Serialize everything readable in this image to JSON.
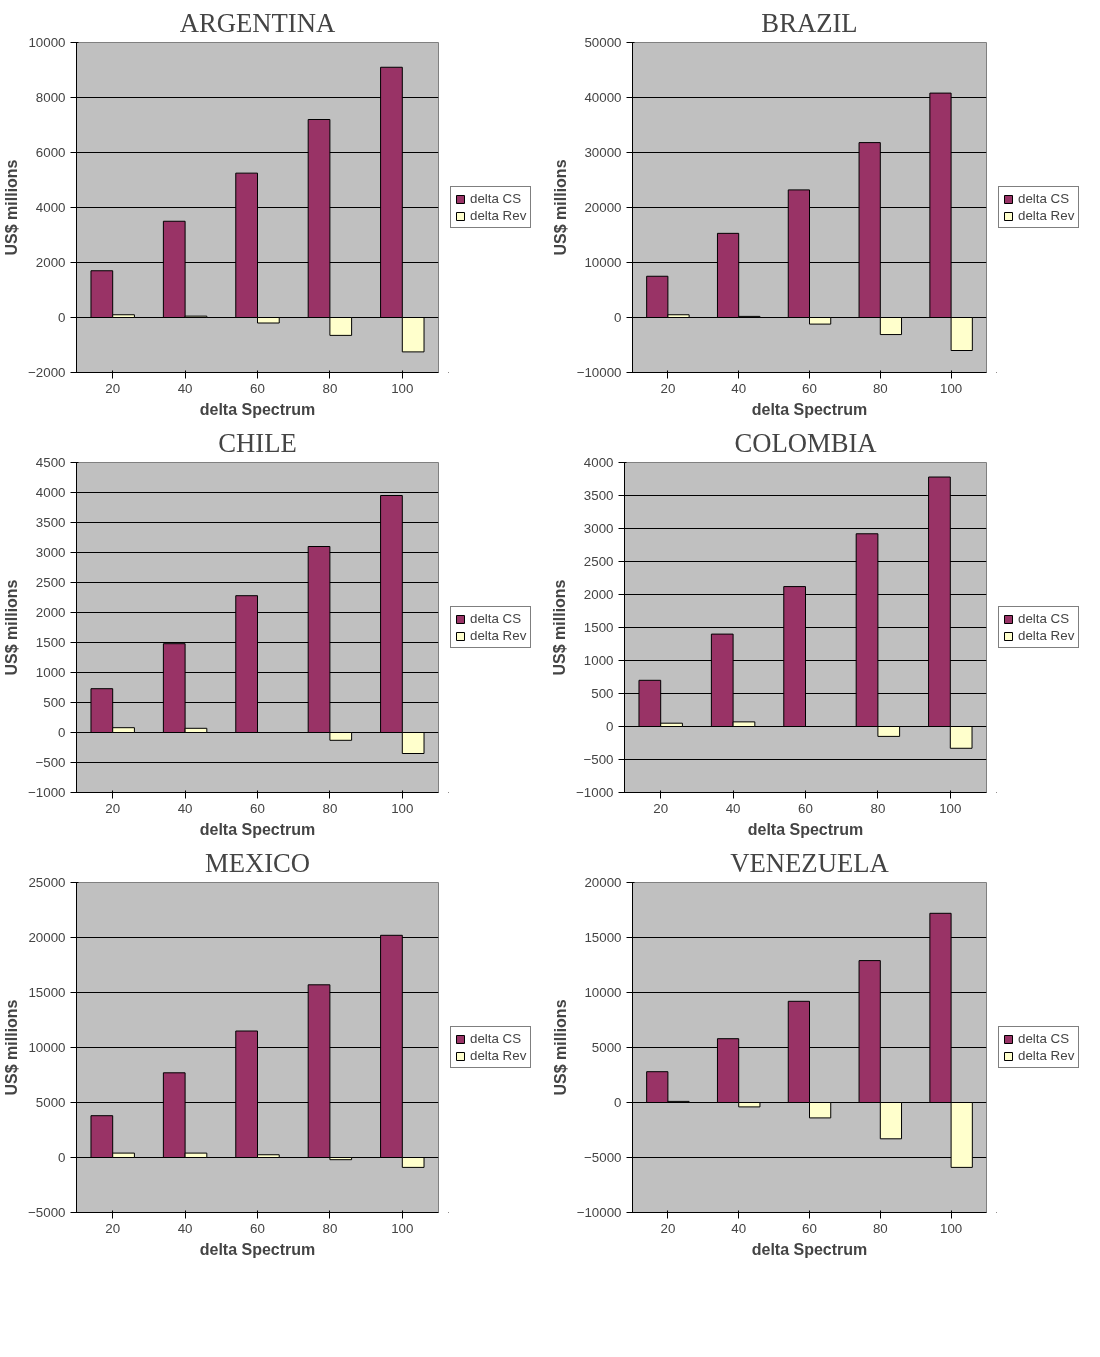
{
  "chart_data": [
    {
      "type": "bar",
      "title": "ARGENTINA",
      "xlabel": "delta Spectrum",
      "ylabel": "US$ millions",
      "categories": [
        "20",
        "40",
        "60",
        "80",
        "100"
      ],
      "series": [
        {
          "name": "delta CS",
          "color": "#993366",
          "values": [
            1700,
            3500,
            5250,
            7200,
            9100
          ]
        },
        {
          "name": "delta Rev",
          "color": "#ffffcc",
          "values": [
            100,
            50,
            -200,
            -650,
            -1250
          ]
        }
      ],
      "ylim": [
        -2000,
        10000
      ],
      "yticks": [
        -2000,
        0,
        2000,
        4000,
        6000,
        8000,
        10000
      ],
      "grid": "y",
      "legend": "right"
    },
    {
      "type": "bar",
      "title": "BRAZIL",
      "xlabel": "delta Spectrum",
      "ylabel": "US$ millions",
      "categories": [
        "20",
        "40",
        "60",
        "80",
        "100"
      ],
      "series": [
        {
          "name": "delta CS",
          "color": "#993366",
          "values": [
            7500,
            15300,
            23200,
            31800,
            40800
          ]
        },
        {
          "name": "delta Rev",
          "color": "#ffffcc",
          "values": [
            500,
            200,
            -1200,
            -3100,
            -6000
          ]
        }
      ],
      "ylim": [
        -10000,
        50000
      ],
      "yticks": [
        -10000,
        0,
        10000,
        20000,
        30000,
        40000,
        50000
      ],
      "grid": "y",
      "legend": "right"
    },
    {
      "type": "bar",
      "title": "CHILE",
      "xlabel": "delta Spectrum",
      "ylabel": "US$ millions",
      "categories": [
        "20",
        "40",
        "60",
        "80",
        "100"
      ],
      "series": [
        {
          "name": "delta CS",
          "color": "#993366",
          "values": [
            730,
            1480,
            2280,
            3100,
            3950
          ]
        },
        {
          "name": "delta Rev",
          "color": "#ffffcc",
          "values": [
            80,
            70,
            null,
            -130,
            -350
          ]
        }
      ],
      "ylim": [
        -1000,
        4500
      ],
      "yticks": [
        -1000,
        -500,
        0,
        500,
        1000,
        1500,
        2000,
        2500,
        3000,
        3500,
        4000,
        4500
      ],
      "grid": "y",
      "legend": "right"
    },
    {
      "type": "bar",
      "title": "COLOMBIA",
      "xlabel": "delta Spectrum",
      "ylabel": "US$ millions",
      "categories": [
        "20",
        "40",
        "60",
        "80",
        "100"
      ],
      "series": [
        {
          "name": "delta CS",
          "color": "#993366",
          "values": [
            700,
            1400,
            2120,
            2920,
            3780
          ]
        },
        {
          "name": "delta Rev",
          "color": "#ffffcc",
          "values": [
            50,
            70,
            null,
            -150,
            -330
          ]
        }
      ],
      "ylim": [
        -1000,
        4000
      ],
      "yticks": [
        -1000,
        -500,
        0,
        500,
        1000,
        1500,
        2000,
        2500,
        3000,
        3500,
        4000
      ],
      "grid": "y",
      "legend": "right"
    },
    {
      "type": "bar",
      "title": "MEXICO",
      "xlabel": "delta Spectrum",
      "ylabel": "US$ millions",
      "categories": [
        "20",
        "40",
        "60",
        "80",
        "100"
      ],
      "series": [
        {
          "name": "delta CS",
          "color": "#993366",
          "values": [
            3800,
            7700,
            11500,
            15700,
            20200
          ]
        },
        {
          "name": "delta Rev",
          "color": "#ffffcc",
          "values": [
            400,
            400,
            250,
            -200,
            -900
          ]
        }
      ],
      "ylim": [
        -5000,
        25000
      ],
      "yticks": [
        -5000,
        0,
        5000,
        10000,
        15000,
        20000,
        25000
      ],
      "grid": "y",
      "legend": "right"
    },
    {
      "type": "bar",
      "title": "VENEZUELA",
      "xlabel": "delta Spectrum",
      "ylabel": "US$ millions",
      "categories": [
        "20",
        "40",
        "60",
        "80",
        "100"
      ],
      "series": [
        {
          "name": "delta CS",
          "color": "#993366",
          "values": [
            2800,
            5800,
            9200,
            12900,
            17200
          ]
        },
        {
          "name": "delta Rev",
          "color": "#ffffcc",
          "values": [
            100,
            -400,
            -1400,
            -3300,
            -5900
          ]
        }
      ],
      "ylim": [
        -10000,
        20000
      ],
      "yticks": [
        -10000,
        -5000,
        0,
        5000,
        10000,
        15000,
        20000
      ],
      "grid": "y",
      "legend": "right"
    }
  ]
}
